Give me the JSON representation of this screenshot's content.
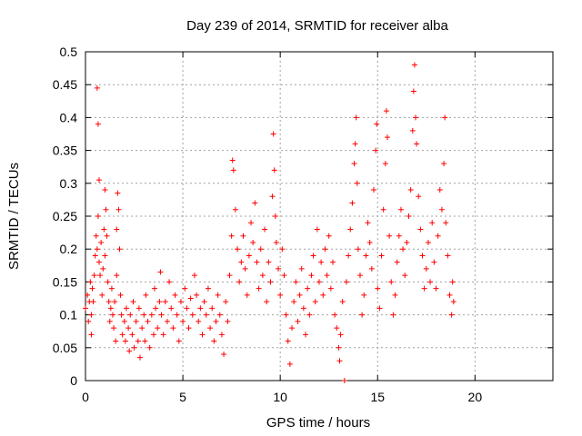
{
  "chart_data": {
    "type": "scatter",
    "title": "Day 239 of 2014, SRMTID for receiver alba",
    "xlabel": "GPS time / hours",
    "ylabel": "SRMTID / TECUs",
    "xlim": [
      0,
      24
    ],
    "ylim": [
      0,
      0.5
    ],
    "xticks": [
      0,
      5,
      10,
      15,
      20
    ],
    "xtick_labels": [
      "0",
      "5",
      "10",
      "15",
      "20"
    ],
    "yticks": [
      0,
      0.05,
      0.1,
      0.15,
      0.2,
      0.25,
      0.3,
      0.35,
      0.4,
      0.45,
      0.5
    ],
    "ytick_labels": [
      "0",
      "0.05",
      "0.1",
      "0.15",
      "0.2",
      "0.25",
      "0.3",
      "0.35",
      "0.4",
      "0.45",
      "0.5"
    ],
    "grid": true,
    "marker": "plus",
    "series": [
      {
        "name": "SRMTID",
        "color": "#ff0000",
        "points": [
          [
            0.0,
            0.11
          ],
          [
            0.1,
            0.13
          ],
          [
            0.15,
            0.09
          ],
          [
            0.2,
            0.12
          ],
          [
            0.25,
            0.15
          ],
          [
            0.3,
            0.1
          ],
          [
            0.3,
            0.07
          ],
          [
            0.35,
            0.14
          ],
          [
            0.4,
            0.12
          ],
          [
            0.45,
            0.16
          ],
          [
            0.5,
            0.19
          ],
          [
            0.55,
            0.22
          ],
          [
            0.6,
            0.445
          ],
          [
            0.6,
            0.2
          ],
          [
            0.65,
            0.39
          ],
          [
            0.65,
            0.25
          ],
          [
            0.7,
            0.305
          ],
          [
            0.7,
            0.18
          ],
          [
            0.75,
            0.16
          ],
          [
            0.8,
            0.21
          ],
          [
            0.85,
            0.13
          ],
          [
            0.9,
            0.17
          ],
          [
            0.95,
            0.23
          ],
          [
            1.0,
            0.19
          ],
          [
            1.0,
            0.29
          ],
          [
            1.05,
            0.26
          ],
          [
            1.1,
            0.22
          ],
          [
            1.15,
            0.15
          ],
          [
            1.2,
            0.12
          ],
          [
            1.25,
            0.09
          ],
          [
            1.3,
            0.11
          ],
          [
            1.35,
            0.14
          ],
          [
            1.4,
            0.1
          ],
          [
            1.45,
            0.08
          ],
          [
            1.5,
            0.12
          ],
          [
            1.55,
            0.06
          ],
          [
            1.6,
            0.16
          ],
          [
            1.6,
            0.23
          ],
          [
            1.65,
            0.285
          ],
          [
            1.7,
            0.26
          ],
          [
            1.75,
            0.2
          ],
          [
            1.8,
            0.13
          ],
          [
            1.85,
            0.1
          ],
          [
            1.9,
            0.07
          ],
          [
            2.0,
            0.09
          ],
          [
            2.05,
            0.06
          ],
          [
            2.1,
            0.11
          ],
          [
            2.2,
            0.08
          ],
          [
            2.25,
            0.045
          ],
          [
            2.3,
            0.1
          ],
          [
            2.4,
            0.07
          ],
          [
            2.45,
            0.12
          ],
          [
            2.5,
            0.05
          ],
          [
            2.6,
            0.09
          ],
          [
            2.7,
            0.06
          ],
          [
            2.75,
            0.11
          ],
          [
            2.8,
            0.035
          ],
          [
            2.9,
            0.08
          ],
          [
            3.0,
            0.1
          ],
          [
            3.05,
            0.06
          ],
          [
            3.1,
            0.13
          ],
          [
            3.2,
            0.09
          ],
          [
            3.3,
            0.05
          ],
          [
            3.4,
            0.1
          ],
          [
            3.5,
            0.07
          ],
          [
            3.55,
            0.14
          ],
          [
            3.6,
            0.11
          ],
          [
            3.7,
            0.08
          ],
          [
            3.8,
            0.12
          ],
          [
            3.85,
            0.165
          ],
          [
            3.9,
            0.1
          ],
          [
            4.0,
            0.07
          ],
          [
            4.1,
            0.12
          ],
          [
            4.2,
            0.09
          ],
          [
            4.3,
            0.15
          ],
          [
            4.4,
            0.11
          ],
          [
            4.5,
            0.08
          ],
          [
            4.6,
            0.13
          ],
          [
            4.7,
            0.1
          ],
          [
            4.8,
            0.06
          ],
          [
            4.9,
            0.12
          ],
          [
            5.0,
            0.09
          ],
          [
            5.1,
            0.14
          ],
          [
            5.2,
            0.11
          ],
          [
            5.3,
            0.08
          ],
          [
            5.4,
            0.125
          ],
          [
            5.5,
            0.1
          ],
          [
            5.6,
            0.16
          ],
          [
            5.7,
            0.13
          ],
          [
            5.8,
            0.09
          ],
          [
            5.9,
            0.11
          ],
          [
            6.0,
            0.07
          ],
          [
            6.1,
            0.12
          ],
          [
            6.2,
            0.1
          ],
          [
            6.3,
            0.14
          ],
          [
            6.4,
            0.08
          ],
          [
            6.5,
            0.11
          ],
          [
            6.6,
            0.06
          ],
          [
            6.7,
            0.09
          ],
          [
            6.8,
            0.13
          ],
          [
            6.9,
            0.1
          ],
          [
            7.0,
            0.07
          ],
          [
            7.1,
            0.04
          ],
          [
            7.2,
            0.12
          ],
          [
            7.3,
            0.09
          ],
          [
            7.4,
            0.16
          ],
          [
            7.5,
            0.22
          ],
          [
            7.55,
            0.335
          ],
          [
            7.6,
            0.32
          ],
          [
            7.7,
            0.26
          ],
          [
            7.8,
            0.2
          ],
          [
            7.9,
            0.15
          ],
          [
            8.0,
            0.18
          ],
          [
            8.1,
            0.22
          ],
          [
            8.2,
            0.17
          ],
          [
            8.3,
            0.13
          ],
          [
            8.4,
            0.19
          ],
          [
            8.5,
            0.24
          ],
          [
            8.6,
            0.21
          ],
          [
            8.7,
            0.27
          ],
          [
            8.8,
            0.18
          ],
          [
            8.9,
            0.14
          ],
          [
            9.0,
            0.2
          ],
          [
            9.1,
            0.16
          ],
          [
            9.2,
            0.23
          ],
          [
            9.3,
            0.12
          ],
          [
            9.4,
            0.18
          ],
          [
            9.5,
            0.15
          ],
          [
            9.6,
            0.28
          ],
          [
            9.65,
            0.375
          ],
          [
            9.7,
            0.32
          ],
          [
            9.75,
            0.25
          ],
          [
            9.8,
            0.21
          ],
          [
            9.9,
            0.17
          ],
          [
            10.0,
            0.13
          ],
          [
            10.1,
            0.2
          ],
          [
            10.2,
            0.16
          ],
          [
            10.3,
            0.1
          ],
          [
            10.4,
            0.06
          ],
          [
            10.5,
            0.025
          ],
          [
            10.6,
            0.08
          ],
          [
            10.7,
            0.12
          ],
          [
            10.8,
            0.15
          ],
          [
            10.9,
            0.09
          ],
          [
            11.0,
            0.13
          ],
          [
            11.1,
            0.17
          ],
          [
            11.2,
            0.11
          ],
          [
            11.3,
            0.07
          ],
          [
            11.4,
            0.14
          ],
          [
            11.5,
            0.1
          ],
          [
            11.6,
            0.16
          ],
          [
            11.7,
            0.19
          ],
          [
            11.8,
            0.12
          ],
          [
            11.9,
            0.23
          ],
          [
            12.0,
            0.15
          ],
          [
            12.1,
            0.18
          ],
          [
            12.2,
            0.13
          ],
          [
            12.3,
            0.2
          ],
          [
            12.4,
            0.16
          ],
          [
            12.5,
            0.22
          ],
          [
            12.6,
            0.14
          ],
          [
            12.7,
            0.18
          ],
          [
            12.8,
            0.1
          ],
          [
            12.9,
            0.08
          ],
          [
            13.0,
            0.05
          ],
          [
            13.05,
            0.03
          ],
          [
            13.1,
            0.07
          ],
          [
            13.2,
            0.12
          ],
          [
            13.3,
            0.0
          ],
          [
            13.4,
            0.15
          ],
          [
            13.5,
            0.19
          ],
          [
            13.6,
            0.23
          ],
          [
            13.7,
            0.27
          ],
          [
            13.8,
            0.33
          ],
          [
            13.85,
            0.36
          ],
          [
            13.9,
            0.4
          ],
          [
            13.95,
            0.3
          ],
          [
            14.0,
            0.2
          ],
          [
            14.1,
            0.16
          ],
          [
            14.2,
            0.1
          ],
          [
            14.3,
            0.13
          ],
          [
            14.4,
            0.19
          ],
          [
            14.5,
            0.24
          ],
          [
            14.6,
            0.21
          ],
          [
            14.7,
            0.17
          ],
          [
            14.8,
            0.29
          ],
          [
            14.9,
            0.35
          ],
          [
            14.95,
            0.39
          ],
          [
            15.0,
            0.14
          ],
          [
            15.1,
            0.11
          ],
          [
            15.2,
            0.19
          ],
          [
            15.3,
            0.26
          ],
          [
            15.4,
            0.33
          ],
          [
            15.45,
            0.41
          ],
          [
            15.5,
            0.37
          ],
          [
            15.6,
            0.22
          ],
          [
            15.7,
            0.15
          ],
          [
            15.8,
            0.1
          ],
          [
            15.9,
            0.13
          ],
          [
            16.0,
            0.18
          ],
          [
            16.1,
            0.22
          ],
          [
            16.2,
            0.26
          ],
          [
            16.3,
            0.2
          ],
          [
            16.4,
            0.16
          ],
          [
            16.5,
            0.21
          ],
          [
            16.6,
            0.25
          ],
          [
            16.7,
            0.29
          ],
          [
            16.8,
            0.38
          ],
          [
            16.85,
            0.44
          ],
          [
            16.9,
            0.48
          ],
          [
            16.95,
            0.4
          ],
          [
            17.0,
            0.36
          ],
          [
            17.1,
            0.28
          ],
          [
            17.2,
            0.23
          ],
          [
            17.3,
            0.19
          ],
          [
            17.4,
            0.14
          ],
          [
            17.5,
            0.17
          ],
          [
            17.6,
            0.21
          ],
          [
            17.7,
            0.15
          ],
          [
            17.8,
            0.24
          ],
          [
            17.9,
            0.18
          ],
          [
            18.0,
            0.14
          ],
          [
            18.1,
            0.22
          ],
          [
            18.2,
            0.29
          ],
          [
            18.3,
            0.26
          ],
          [
            18.4,
            0.33
          ],
          [
            18.45,
            0.4
          ],
          [
            18.5,
            0.24
          ],
          [
            18.6,
            0.19
          ],
          [
            18.7,
            0.13
          ],
          [
            18.8,
            0.1
          ],
          [
            18.85,
            0.15
          ],
          [
            18.9,
            0.12
          ]
        ]
      }
    ]
  }
}
